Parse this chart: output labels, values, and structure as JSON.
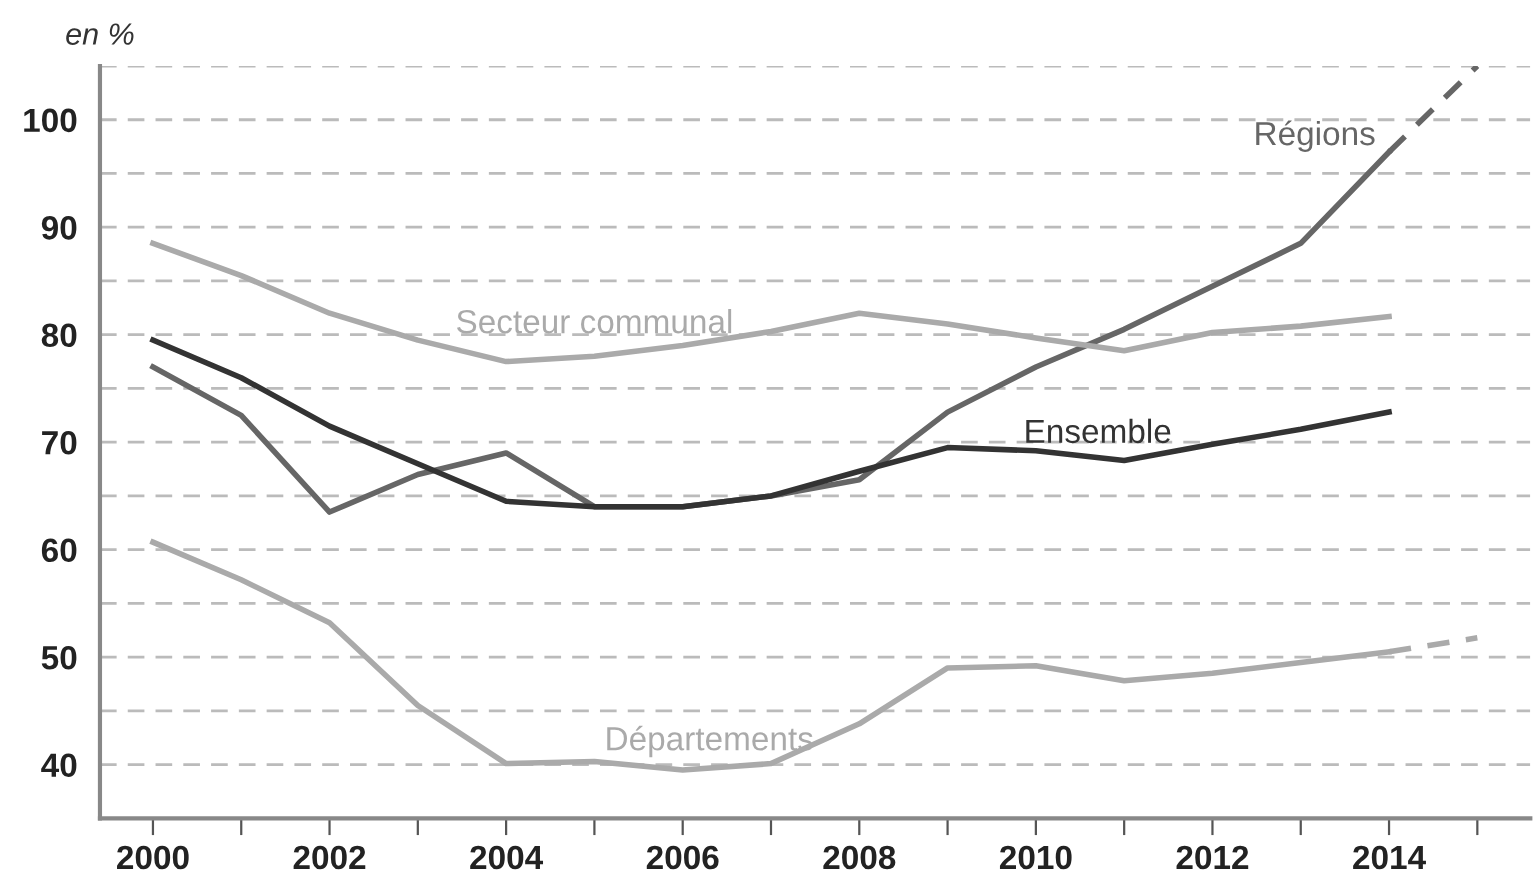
{
  "chart_data": {
    "type": "line",
    "ylabel": "en %",
    "x": [
      2000,
      2001,
      2002,
      2003,
      2004,
      2005,
      2006,
      2007,
      2008,
      2009,
      2010,
      2011,
      2012,
      2013,
      2014,
      2015
    ],
    "series": [
      {
        "name": "Régions",
        "color": "#666666",
        "values": [
          77,
          72.5,
          63.5,
          67,
          69,
          64,
          64,
          65,
          66.5,
          72.8,
          77,
          80.5,
          84.5,
          88.5,
          97,
          null
        ]
      },
      {
        "name": "Secteur communal",
        "color": "#aaaaaa",
        "values": [
          88.5,
          85.5,
          82,
          79.5,
          77.5,
          78,
          79,
          80.3,
          82,
          81,
          79.7,
          78.5,
          80.2,
          80.8,
          81.7,
          null
        ]
      },
      {
        "name": "Ensemble",
        "color": "#333333",
        "values": [
          79.5,
          76,
          71.5,
          68,
          64.5,
          64,
          64,
          65,
          67.3,
          69.5,
          69.2,
          68.3,
          69.8,
          71.2,
          72.8,
          null
        ]
      },
      {
        "name": "Départements",
        "color": "#aaaaaa",
        "values": [
          60.7,
          57.2,
          53.2,
          45.5,
          40.1,
          40.3,
          39.5,
          40.1,
          43.8,
          49,
          49.2,
          47.8,
          48.5,
          49.5,
          50.5,
          null
        ]
      },
      {
        "color": "#666666",
        "values": [
          null,
          null,
          null,
          null,
          null,
          null,
          null,
          null,
          null,
          null,
          null,
          null,
          null,
          null,
          97,
          105
        ],
        "line_style": "dashed"
      },
      {
        "color": "#aaaaaa",
        "values": [
          null,
          null,
          null,
          null,
          null,
          null,
          null,
          null,
          null,
          null,
          null,
          null,
          null,
          null,
          50.5,
          51.8
        ],
        "line_style": "dashed"
      }
    ],
    "xlim": [
      1999.4,
      2015.6
    ],
    "xticks": [
      2000,
      {
        "value": 2001,
        "label": null
      },
      2002,
      {
        "value": 2003,
        "label": null
      },
      2004,
      {
        "value": 2005,
        "label": null
      },
      2006,
      {
        "value": 2007,
        "label": null
      },
      2008,
      {
        "value": 2009,
        "label": null
      },
      2010,
      {
        "value": 2011,
        "label": null
      },
      2012,
      {
        "value": 2013,
        "label": null
      },
      2014,
      {
        "value": 2015,
        "label": null
      }
    ],
    "ylim": [
      35,
      105
    ],
    "yticks": [
      40,
      {
        "value": 45,
        "label": null
      },
      50,
      {
        "value": 55,
        "label": null
      },
      60,
      {
        "value": 65,
        "label": null
      },
      70,
      {
        "value": 75,
        "label": null
      },
      80,
      {
        "value": 85,
        "label": null
      },
      90,
      {
        "value": 95,
        "label": null
      },
      100,
      {
        "value": 105,
        "label": null
      }
    ],
    "grid": "y",
    "legend": false,
    "marker": "none",
    "line_style": "solid"
  }
}
